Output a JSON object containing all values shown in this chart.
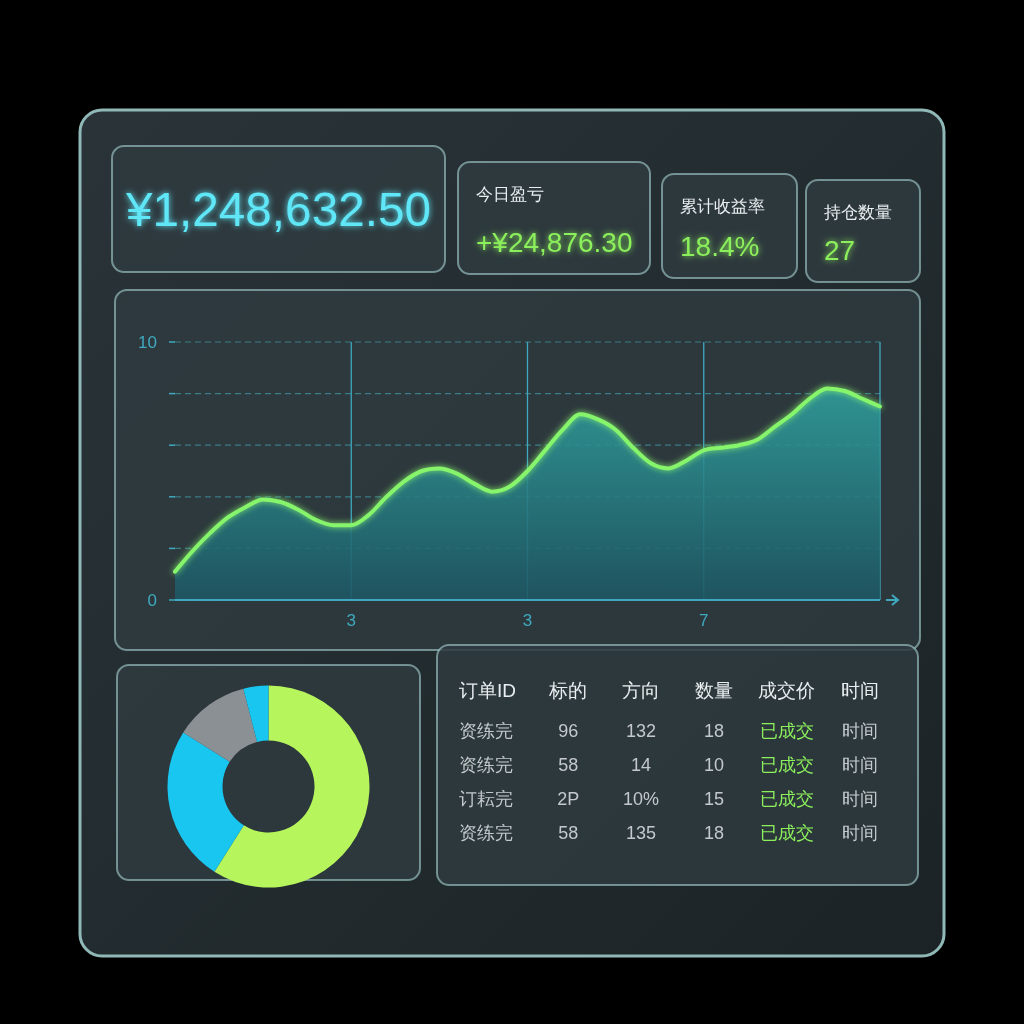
{
  "chart_data": [
    {
      "type": "other",
      "annotations": [
        "¥1,248,632.50"
      ],
      "color": "#5ee6f7"
    },
    {
      "type": "other",
      "title": "今日盈亏",
      "annotations": [
        "+¥24,876.30"
      ],
      "color": "#8cf05c"
    },
    {
      "type": "other",
      "title": "累计收益率",
      "annotations": [
        "18.4%"
      ],
      "color": "#8cf05c"
    },
    {
      "type": "other",
      "title": "持仓数量",
      "annotations": [
        "27"
      ],
      "color": "#8cf05c"
    },
    {
      "type": "area",
      "categories": [
        null,
        null,
        null,
        null,
        null,
        null,
        null,
        null,
        null,
        null,
        "3",
        null,
        null,
        null,
        null,
        null,
        null,
        null,
        null,
        null,
        "3",
        null,
        null,
        null,
        null,
        null,
        null,
        null,
        null,
        null,
        "7",
        null,
        null,
        null,
        null,
        null,
        null,
        null,
        null,
        null,
        null
      ],
      "values": [
        1.1,
        1.9,
        2.6,
        3.2,
        3.6,
        3.9,
        3.8,
        3.5,
        3.1,
        2.9,
        2.9,
        3.3,
        4.0,
        4.6,
        5.0,
        5.1,
        4.9,
        4.5,
        4.2,
        4.4,
        5.0,
        5.8,
        6.6,
        7.2,
        7.0,
        6.6,
        5.9,
        5.3,
        5.1,
        5.4,
        5.8,
        5.9,
        6.0,
        6.2,
        6.7,
        7.2,
        7.8,
        8.2,
        8.1,
        7.8,
        7.5
      ],
      "color": "#86f56c",
      "ylim": [
        0,
        10
      ],
      "yticks": [
        0,
        {
          "value": 2,
          "label": null
        },
        {
          "value": 4,
          "label": null
        },
        {
          "value": 6,
          "label": null
        },
        {
          "value": 8,
          "label": null
        },
        10
      ],
      "grid": true
    },
    {
      "type": "donut",
      "categories": [
        null,
        null,
        null,
        null
      ],
      "values": [
        59,
        25,
        12,
        4
      ],
      "colors": [
        "#b6f55c",
        "#18c6ef",
        "#8b9094",
        "#18c6ef"
      ]
    },
    {
      "type": "other",
      "categories": [
        "订单ID",
        "标的",
        "方向",
        "数量",
        "成交价",
        "时间"
      ],
      "annotations": [
        "资练完",
        "96",
        "132",
        "18",
        "已成交",
        "时间",
        "资练完",
        "58",
        "14",
        "10",
        "已成交",
        "时间",
        "订耘完",
        "2P",
        "10%",
        "15",
        "已成交",
        "时间",
        "资练完",
        "58",
        "135",
        "18",
        "已成交",
        "时间"
      ]
    }
  ]
}
